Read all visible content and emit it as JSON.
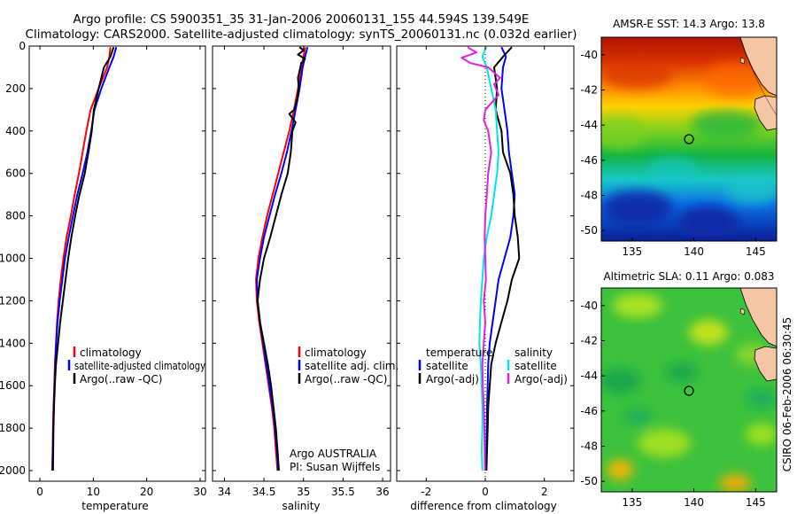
{
  "header": {
    "line1": "Argo profile: CS 5900351_35 31-Jan-2006 20060131_155 44.594S 139.549E",
    "line2": "Climatology: CARS2000. Satellite-adjusted climatology: synTS_20060131.nc (0.032d earlier)"
  },
  "side_text": "CSIRO 06-Feb-2006 06:30:45",
  "chart_data": [
    {
      "type": "line",
      "panel": "temperature",
      "xlabel": "temperature",
      "xlim": [
        -2,
        31
      ],
      "xticks": [
        0,
        10,
        20,
        30
      ],
      "ylim": [
        0,
        2050
      ],
      "yreverse": true,
      "yticks": [
        0,
        200,
        400,
        600,
        800,
        1000,
        1200,
        1400,
        1600,
        1800,
        2000
      ],
      "legend": [
        "climatology",
        "satellite-adjusted climatology",
        "Argo(..raw -QC)"
      ],
      "legend_position": "bottom-right",
      "series": [
        {
          "name": "climatology",
          "color": "#ff0000",
          "points": [
            [
              13.2,
              5
            ],
            [
              13.0,
              50
            ],
            [
              12.6,
              100
            ],
            [
              11.0,
              200
            ],
            [
              9.5,
              300
            ],
            [
              8.7,
              400
            ],
            [
              8.0,
              500
            ],
            [
              7.3,
              600
            ],
            [
              6.5,
              700
            ],
            [
              5.8,
              800
            ],
            [
              5.0,
              900
            ],
            [
              4.4,
              1000
            ],
            [
              3.9,
              1100
            ],
            [
              3.5,
              1200
            ],
            [
              3.2,
              1300
            ],
            [
              3.0,
              1400
            ],
            [
              2.8,
              1500
            ],
            [
              2.7,
              1600
            ],
            [
              2.55,
              1700
            ],
            [
              2.45,
              1800
            ],
            [
              2.4,
              1900
            ],
            [
              2.3,
              2000
            ]
          ]
        },
        {
          "name": "satellite-adjusted climatology",
          "color": "#0000ff",
          "points": [
            [
              14.3,
              5
            ],
            [
              13.8,
              50
            ],
            [
              13.0,
              100
            ],
            [
              11.5,
              200
            ],
            [
              10.2,
              300
            ],
            [
              9.6,
              400
            ],
            [
              8.9,
              500
            ],
            [
              8.0,
              600
            ],
            [
              7.0,
              700
            ],
            [
              6.2,
              800
            ],
            [
              5.4,
              900
            ],
            [
              4.7,
              1000
            ],
            [
              4.2,
              1100
            ],
            [
              3.7,
              1200
            ],
            [
              3.3,
              1300
            ],
            [
              3.05,
              1400
            ],
            [
              2.9,
              1500
            ],
            [
              2.75,
              1600
            ],
            [
              2.6,
              1700
            ],
            [
              2.5,
              1800
            ],
            [
              2.42,
              1900
            ],
            [
              2.35,
              2000
            ]
          ]
        },
        {
          "name": "Argo(..raw -QC)",
          "color": "#000000",
          "points": [
            [
              13.8,
              5
            ],
            [
              13.2,
              50
            ],
            [
              12.0,
              100
            ],
            [
              11.0,
              200
            ],
            [
              10.1,
              300
            ],
            [
              9.7,
              400
            ],
            [
              9.1,
              500
            ],
            [
              8.4,
              600
            ],
            [
              7.4,
              700
            ],
            [
              6.6,
              800
            ],
            [
              5.9,
              900
            ],
            [
              5.3,
              1000
            ],
            [
              4.8,
              1100
            ],
            [
              4.3,
              1200
            ],
            [
              3.8,
              1300
            ],
            [
              3.4,
              1400
            ],
            [
              3.0,
              1500
            ],
            [
              2.8,
              1600
            ],
            [
              2.65,
              1700
            ],
            [
              2.55,
              1800
            ],
            [
              2.5,
              1900
            ],
            [
              2.45,
              2000
            ]
          ]
        }
      ]
    },
    {
      "type": "line",
      "panel": "salinity",
      "xlabel": "salinity",
      "xlim": [
        33.85,
        36.1
      ],
      "xticks": [
        34,
        34.5,
        35,
        35.5,
        36
      ],
      "ylim": [
        0,
        2050
      ],
      "yreverse": true,
      "legend": [
        "climatology",
        "satellite adj. clim.",
        "Argo(..raw -QC)"
      ],
      "legend_position": "bottom-right",
      "annotation": [
        "Argo AUSTRALIA",
        "PI: Susan Wijffels"
      ],
      "series": [
        {
          "name": "climatology",
          "color": "#ff0000",
          "points": [
            [
              35.02,
              5
            ],
            [
              35.0,
              50
            ],
            [
              34.98,
              100
            ],
            [
              34.93,
              200
            ],
            [
              34.88,
              300
            ],
            [
              34.82,
              400
            ],
            [
              34.75,
              500
            ],
            [
              34.68,
              600
            ],
            [
              34.61,
              700
            ],
            [
              34.54,
              800
            ],
            [
              34.48,
              900
            ],
            [
              34.43,
              1000
            ],
            [
              34.4,
              1100
            ],
            [
              34.41,
              1200
            ],
            [
              34.44,
              1300
            ],
            [
              34.48,
              1400
            ],
            [
              34.52,
              1500
            ],
            [
              34.56,
              1600
            ],
            [
              34.6,
              1700
            ],
            [
              34.63,
              1800
            ],
            [
              34.65,
              1900
            ],
            [
              34.67,
              2000
            ]
          ]
        },
        {
          "name": "satellite adj. clim.",
          "color": "#0000ff",
          "points": [
            [
              35.05,
              5
            ],
            [
              35.02,
              50
            ],
            [
              34.99,
              100
            ],
            [
              34.95,
              200
            ],
            [
              34.9,
              300
            ],
            [
              34.85,
              400
            ],
            [
              34.79,
              500
            ],
            [
              34.72,
              600
            ],
            [
              34.64,
              700
            ],
            [
              34.57,
              800
            ],
            [
              34.5,
              900
            ],
            [
              34.45,
              1000
            ],
            [
              34.41,
              1100
            ],
            [
              34.42,
              1200
            ],
            [
              34.45,
              1300
            ],
            [
              34.49,
              1400
            ],
            [
              34.53,
              1500
            ],
            [
              34.57,
              1600
            ],
            [
              34.61,
              1700
            ],
            [
              34.64,
              1800
            ],
            [
              34.66,
              1900
            ],
            [
              34.68,
              2000
            ]
          ]
        },
        {
          "name": "Argo(..raw -QC)",
          "color": "#000000",
          "points": [
            [
              34.95,
              5
            ],
            [
              35.0,
              20
            ],
            [
              34.93,
              40
            ],
            [
              35.02,
              60
            ],
            [
              34.97,
              80
            ],
            [
              34.96,
              100
            ],
            [
              34.93,
              150
            ],
            [
              34.94,
              200
            ],
            [
              34.92,
              250
            ],
            [
              34.88,
              300
            ],
            [
              34.82,
              320
            ],
            [
              34.9,
              360
            ],
            [
              34.86,
              400
            ],
            [
              34.84,
              500
            ],
            [
              34.8,
              600
            ],
            [
              34.72,
              700
            ],
            [
              34.65,
              800
            ],
            [
              34.58,
              900
            ],
            [
              34.5,
              1000
            ],
            [
              34.45,
              1100
            ],
            [
              34.42,
              1200
            ],
            [
              34.45,
              1300
            ],
            [
              34.5,
              1400
            ],
            [
              34.55,
              1500
            ],
            [
              34.59,
              1600
            ],
            [
              34.62,
              1700
            ],
            [
              34.65,
              1800
            ],
            [
              34.67,
              1900
            ],
            [
              34.69,
              2000
            ]
          ]
        }
      ]
    },
    {
      "type": "line",
      "panel": "difference",
      "xlabel": "difference from climatology",
      "xlim": [
        -3,
        3
      ],
      "xticks": [
        -2,
        0,
        2
      ],
      "ylim": [
        0,
        2050
      ],
      "yreverse": true,
      "legend_titles": [
        "temperature",
        "salinity"
      ],
      "legend": [
        "satellite",
        "Argo(-adj)",
        "satellite",
        "Argo(-adj)"
      ],
      "legend_position": "bottom",
      "series": [
        {
          "name": "satellite",
          "group": "temperature",
          "color": "#0000ff",
          "points": [
            [
              0.55,
              5
            ],
            [
              0.7,
              50
            ],
            [
              0.6,
              100
            ],
            [
              0.55,
              200
            ],
            [
              0.65,
              300
            ],
            [
              0.75,
              400
            ],
            [
              0.8,
              500
            ],
            [
              0.9,
              600
            ],
            [
              1.0,
              700
            ],
            [
              0.95,
              800
            ],
            [
              0.85,
              900
            ],
            [
              0.65,
              1000
            ],
            [
              0.45,
              1100
            ],
            [
              0.35,
              1200
            ],
            [
              0.25,
              1300
            ],
            [
              0.15,
              1400
            ],
            [
              0.1,
              1500
            ],
            [
              0.08,
              1600
            ],
            [
              0.06,
              1700
            ],
            [
              0.05,
              1800
            ],
            [
              0.04,
              1900
            ],
            [
              0.03,
              2000
            ]
          ]
        },
        {
          "name": "Argo(-adj)",
          "group": "temperature",
          "color": "#000000",
          "points": [
            [
              0.9,
              5
            ],
            [
              0.6,
              50
            ],
            [
              0.3,
              100
            ],
            [
              0.4,
              200
            ],
            [
              0.35,
              300
            ],
            [
              0.55,
              400
            ],
            [
              0.6,
              500
            ],
            [
              0.85,
              600
            ],
            [
              0.95,
              700
            ],
            [
              1.0,
              800
            ],
            [
              1.1,
              900
            ],
            [
              1.15,
              1000
            ],
            [
              0.9,
              1100
            ],
            [
              0.75,
              1200
            ],
            [
              0.55,
              1300
            ],
            [
              0.35,
              1400
            ],
            [
              0.2,
              1500
            ],
            [
              0.15,
              1600
            ],
            [
              0.1,
              1700
            ],
            [
              0.08,
              1800
            ],
            [
              0.06,
              1900
            ],
            [
              0.04,
              2000
            ]
          ]
        },
        {
          "name": "satellite",
          "group": "salinity",
          "color": "#00e5e5",
          "points": [
            [
              0.03,
              5
            ],
            [
              -0.1,
              50
            ],
            [
              0.05,
              100
            ],
            [
              0.2,
              200
            ],
            [
              0.35,
              300
            ],
            [
              0.4,
              400
            ],
            [
              0.45,
              500
            ],
            [
              0.4,
              600
            ],
            [
              0.3,
              700
            ],
            [
              0.2,
              800
            ],
            [
              0.05,
              900
            ],
            [
              -0.05,
              1000
            ],
            [
              -0.1,
              1100
            ],
            [
              -0.15,
              1200
            ],
            [
              -0.18,
              1300
            ],
            [
              -0.2,
              1400
            ],
            [
              -0.15,
              1500
            ],
            [
              -0.12,
              1600
            ],
            [
              -0.1,
              1700
            ],
            [
              -0.1,
              1800
            ],
            [
              -0.12,
              1900
            ],
            [
              -0.1,
              2000
            ]
          ]
        },
        {
          "name": "Argo(-adj)",
          "group": "salinity",
          "color": "#e020e0",
          "points": [
            [
              -0.6,
              5
            ],
            [
              -0.3,
              30
            ],
            [
              -0.8,
              55
            ],
            [
              -0.5,
              80
            ],
            [
              0.1,
              100
            ],
            [
              0.5,
              150
            ],
            [
              0.3,
              180
            ],
            [
              0.45,
              230
            ],
            [
              0.0,
              300
            ],
            [
              -0.05,
              350
            ],
            [
              0.1,
              400
            ],
            [
              0.2,
              500
            ],
            [
              0.1,
              600
            ],
            [
              0.05,
              700
            ],
            [
              0.0,
              800
            ],
            [
              -0.02,
              900
            ],
            [
              0.0,
              1000
            ],
            [
              0.02,
              1100
            ],
            [
              -0.05,
              1200
            ],
            [
              0.0,
              1300
            ],
            [
              -0.05,
              1400
            ],
            [
              -0.1,
              1500
            ],
            [
              -0.08,
              1600
            ],
            [
              -0.05,
              1700
            ],
            [
              -0.03,
              1800
            ],
            [
              -0.02,
              1900
            ],
            [
              -0.01,
              2000
            ]
          ]
        }
      ]
    },
    {
      "type": "heatmap",
      "panel": "sst_map",
      "title": "AMSR-E SST: 14.3 Argo: 13.8",
      "xlim": [
        132.5,
        146.7
      ],
      "ylim": [
        -50.6,
        -39.0
      ],
      "xticks": [
        135,
        140,
        145
      ],
      "yticks": [
        -40,
        -42,
        -44,
        -46,
        -48,
        -50
      ],
      "marker": {
        "lon": 139.549,
        "lat": -44.594
      }
    },
    {
      "type": "heatmap",
      "panel": "sla_map",
      "title": "Altimetric SLA: 0.11 Argo: 0.083",
      "xlim": [
        132.5,
        146.7
      ],
      "ylim": [
        -50.6,
        -39.0
      ],
      "xticks": [
        135,
        140,
        145
      ],
      "yticks": [
        -40,
        -42,
        -44,
        -46,
        -48,
        -50
      ],
      "marker": {
        "lon": 139.549,
        "lat": -44.594
      }
    }
  ]
}
